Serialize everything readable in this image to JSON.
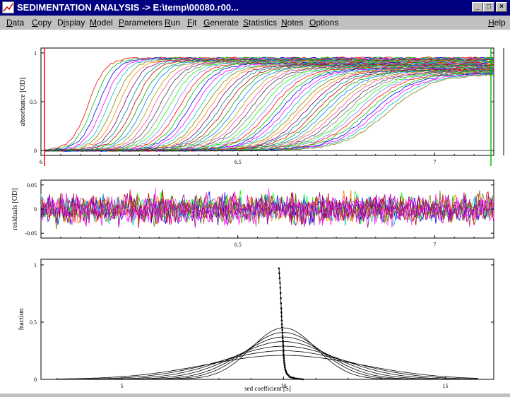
{
  "window": {
    "title": "SEDIMENTATION ANALYSIS -> E:\\temp\\00080.r00...",
    "minimize_glyph": "_",
    "maximize_glyph": "□",
    "close_glyph": "×"
  },
  "menu": {
    "items": [
      {
        "pre": "",
        "ul": "D",
        "post": "ata"
      },
      {
        "pre": "",
        "ul": "C",
        "post": "opy"
      },
      {
        "pre": "D",
        "ul": "i",
        "post": "splay"
      },
      {
        "pre": "",
        "ul": "M",
        "post": "odel"
      },
      {
        "pre": "",
        "ul": "P",
        "post": "arameters"
      },
      {
        "pre": "",
        "ul": "R",
        "post": "un"
      },
      {
        "pre": "",
        "ul": "F",
        "post": "it"
      },
      {
        "pre": "",
        "ul": "G",
        "post": "enerate"
      },
      {
        "pre": "",
        "ul": "S",
        "post": "tatistics"
      },
      {
        "pre": "",
        "ul": "N",
        "post": "otes"
      },
      {
        "pre": "",
        "ul": "O",
        "post": "ptions"
      }
    ],
    "help": {
      "pre": "",
      "ul": "H",
      "post": "elp"
    }
  },
  "chart_data": [
    {
      "type": "line",
      "ylabel": "absorbance [OD]",
      "xlabel": "",
      "xlim": [
        6.0,
        7.15
      ],
      "ylim": [
        -0.05,
        1.05
      ],
      "x_ticks": [
        "6",
        "6.5",
        "7"
      ],
      "y_ticks": [
        "0",
        "0.5",
        "1"
      ],
      "series_count": 60,
      "boundary_midpoint_range": [
        6.12,
        6.88
      ],
      "plateau_range": [
        0.78,
        0.95
      ],
      "meniscus_line_color": "#ff0000",
      "bottom_line_color": "#00c000"
    },
    {
      "type": "line",
      "ylabel": "residuals [OD]",
      "xlabel": "",
      "xlim": [
        6.0,
        7.15
      ],
      "ylim": [
        -0.06,
        0.06
      ],
      "x_ticks": [
        "6.5",
        "7"
      ],
      "y_ticks": [
        "0.05",
        "0",
        "-0.05"
      ]
    },
    {
      "type": "line",
      "ylabel": "fraction",
      "xlabel": "sed coefficient [S]",
      "xlim": [
        2.5,
        16.5
      ],
      "ylim": [
        0,
        1
      ],
      "x_ticks": [
        "5",
        "10",
        "15"
      ],
      "y_ticks": [
        "0",
        "0.5",
        "1"
      ],
      "gaussian_center": 10,
      "gaussian_peaks": [
        0.45,
        0.41,
        0.37,
        0.33,
        0.29,
        0.25,
        0.21
      ],
      "gaussian_widths": [
        1.0,
        1.15,
        1.3,
        1.5,
        1.75,
        2.05,
        2.4
      ],
      "spike_series": {
        "x": [
          9.86,
          9.9,
          9.93,
          9.95,
          9.97,
          9.99,
          10.0,
          10.02,
          10.05,
          10.1,
          10.2,
          10.35,
          10.6
        ],
        "y": [
          0.97,
          0.8,
          0.62,
          0.48,
          0.38,
          0.3,
          0.22,
          0.15,
          0.09,
          0.05,
          0.02,
          0.01,
          0.0
        ]
      }
    }
  ]
}
